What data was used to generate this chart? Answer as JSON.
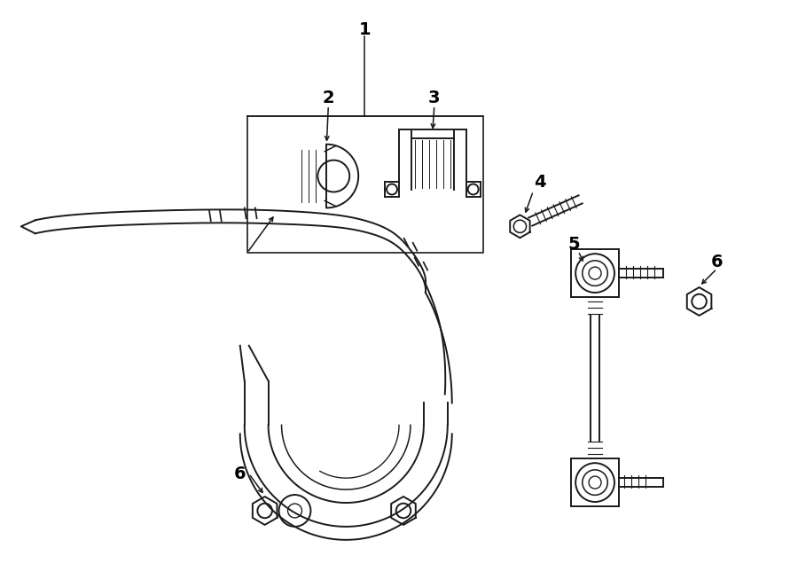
{
  "bg_color": "#ffffff",
  "line_color": "#1a1a1a",
  "lw": 1.4,
  "fig_width": 9.0,
  "fig_height": 6.62,
  "dpi": 100
}
